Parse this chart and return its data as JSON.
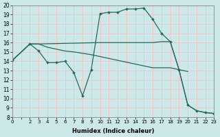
{
  "xlabel": "Humidex (Indice chaleur)",
  "bg_color": "#cce8e8",
  "grid_color": "#f0c8c8",
  "line_color": "#1e6b5e",
  "xlim": [
    0,
    23
  ],
  "ylim": [
    8,
    20
  ],
  "xtick_labels": [
    "0",
    "",
    "2",
    "3",
    "4",
    "5",
    "6",
    "7",
    "8",
    "9",
    "10",
    "11",
    "12",
    "13",
    "14",
    "15",
    "16",
    "17",
    "18",
    "19",
    "20",
    "21",
    "22",
    "23"
  ],
  "xtick_vals": [
    0,
    1,
    2,
    3,
    4,
    5,
    6,
    7,
    8,
    9,
    10,
    11,
    12,
    13,
    14,
    15,
    16,
    17,
    18,
    19,
    20,
    21,
    22,
    23
  ],
  "ytick_vals": [
    8,
    9,
    10,
    11,
    12,
    13,
    14,
    15,
    16,
    17,
    18,
    19,
    20
  ],
  "line1_x": [
    0,
    2,
    3,
    4,
    5,
    6,
    7,
    8,
    9,
    10,
    11,
    12,
    13,
    14,
    15,
    16,
    17,
    18,
    19,
    20,
    21,
    22,
    23
  ],
  "line1_y": [
    14.1,
    15.85,
    15.1,
    13.85,
    13.85,
    14.0,
    12.8,
    10.3,
    13.1,
    19.1,
    19.25,
    19.25,
    19.6,
    19.6,
    19.7,
    18.5,
    17.0,
    16.1,
    13.1,
    9.3,
    8.7,
    8.5,
    8.4
  ],
  "line2_x": [
    0,
    2,
    3,
    4,
    5,
    6,
    7,
    8,
    9,
    10,
    11,
    12,
    13,
    14,
    15,
    16,
    17,
    18,
    19,
    20
  ],
  "line2_y": [
    14.1,
    15.85,
    15.85,
    15.5,
    15.3,
    15.1,
    15.0,
    14.85,
    14.7,
    14.5,
    14.3,
    14.1,
    13.9,
    13.7,
    13.5,
    13.3,
    13.3,
    13.3,
    13.1,
    12.9
  ],
  "line3_x": [
    0,
    2,
    3,
    10,
    11,
    12,
    13,
    14,
    15,
    16,
    17,
    18,
    19,
    20,
    21,
    22,
    23
  ],
  "line3_y": [
    14.1,
    15.85,
    15.85,
    16.0,
    16.0,
    16.0,
    16.0,
    16.0,
    16.0,
    16.0,
    16.1,
    16.1,
    13.1,
    9.3,
    8.7,
    8.5,
    8.4
  ]
}
